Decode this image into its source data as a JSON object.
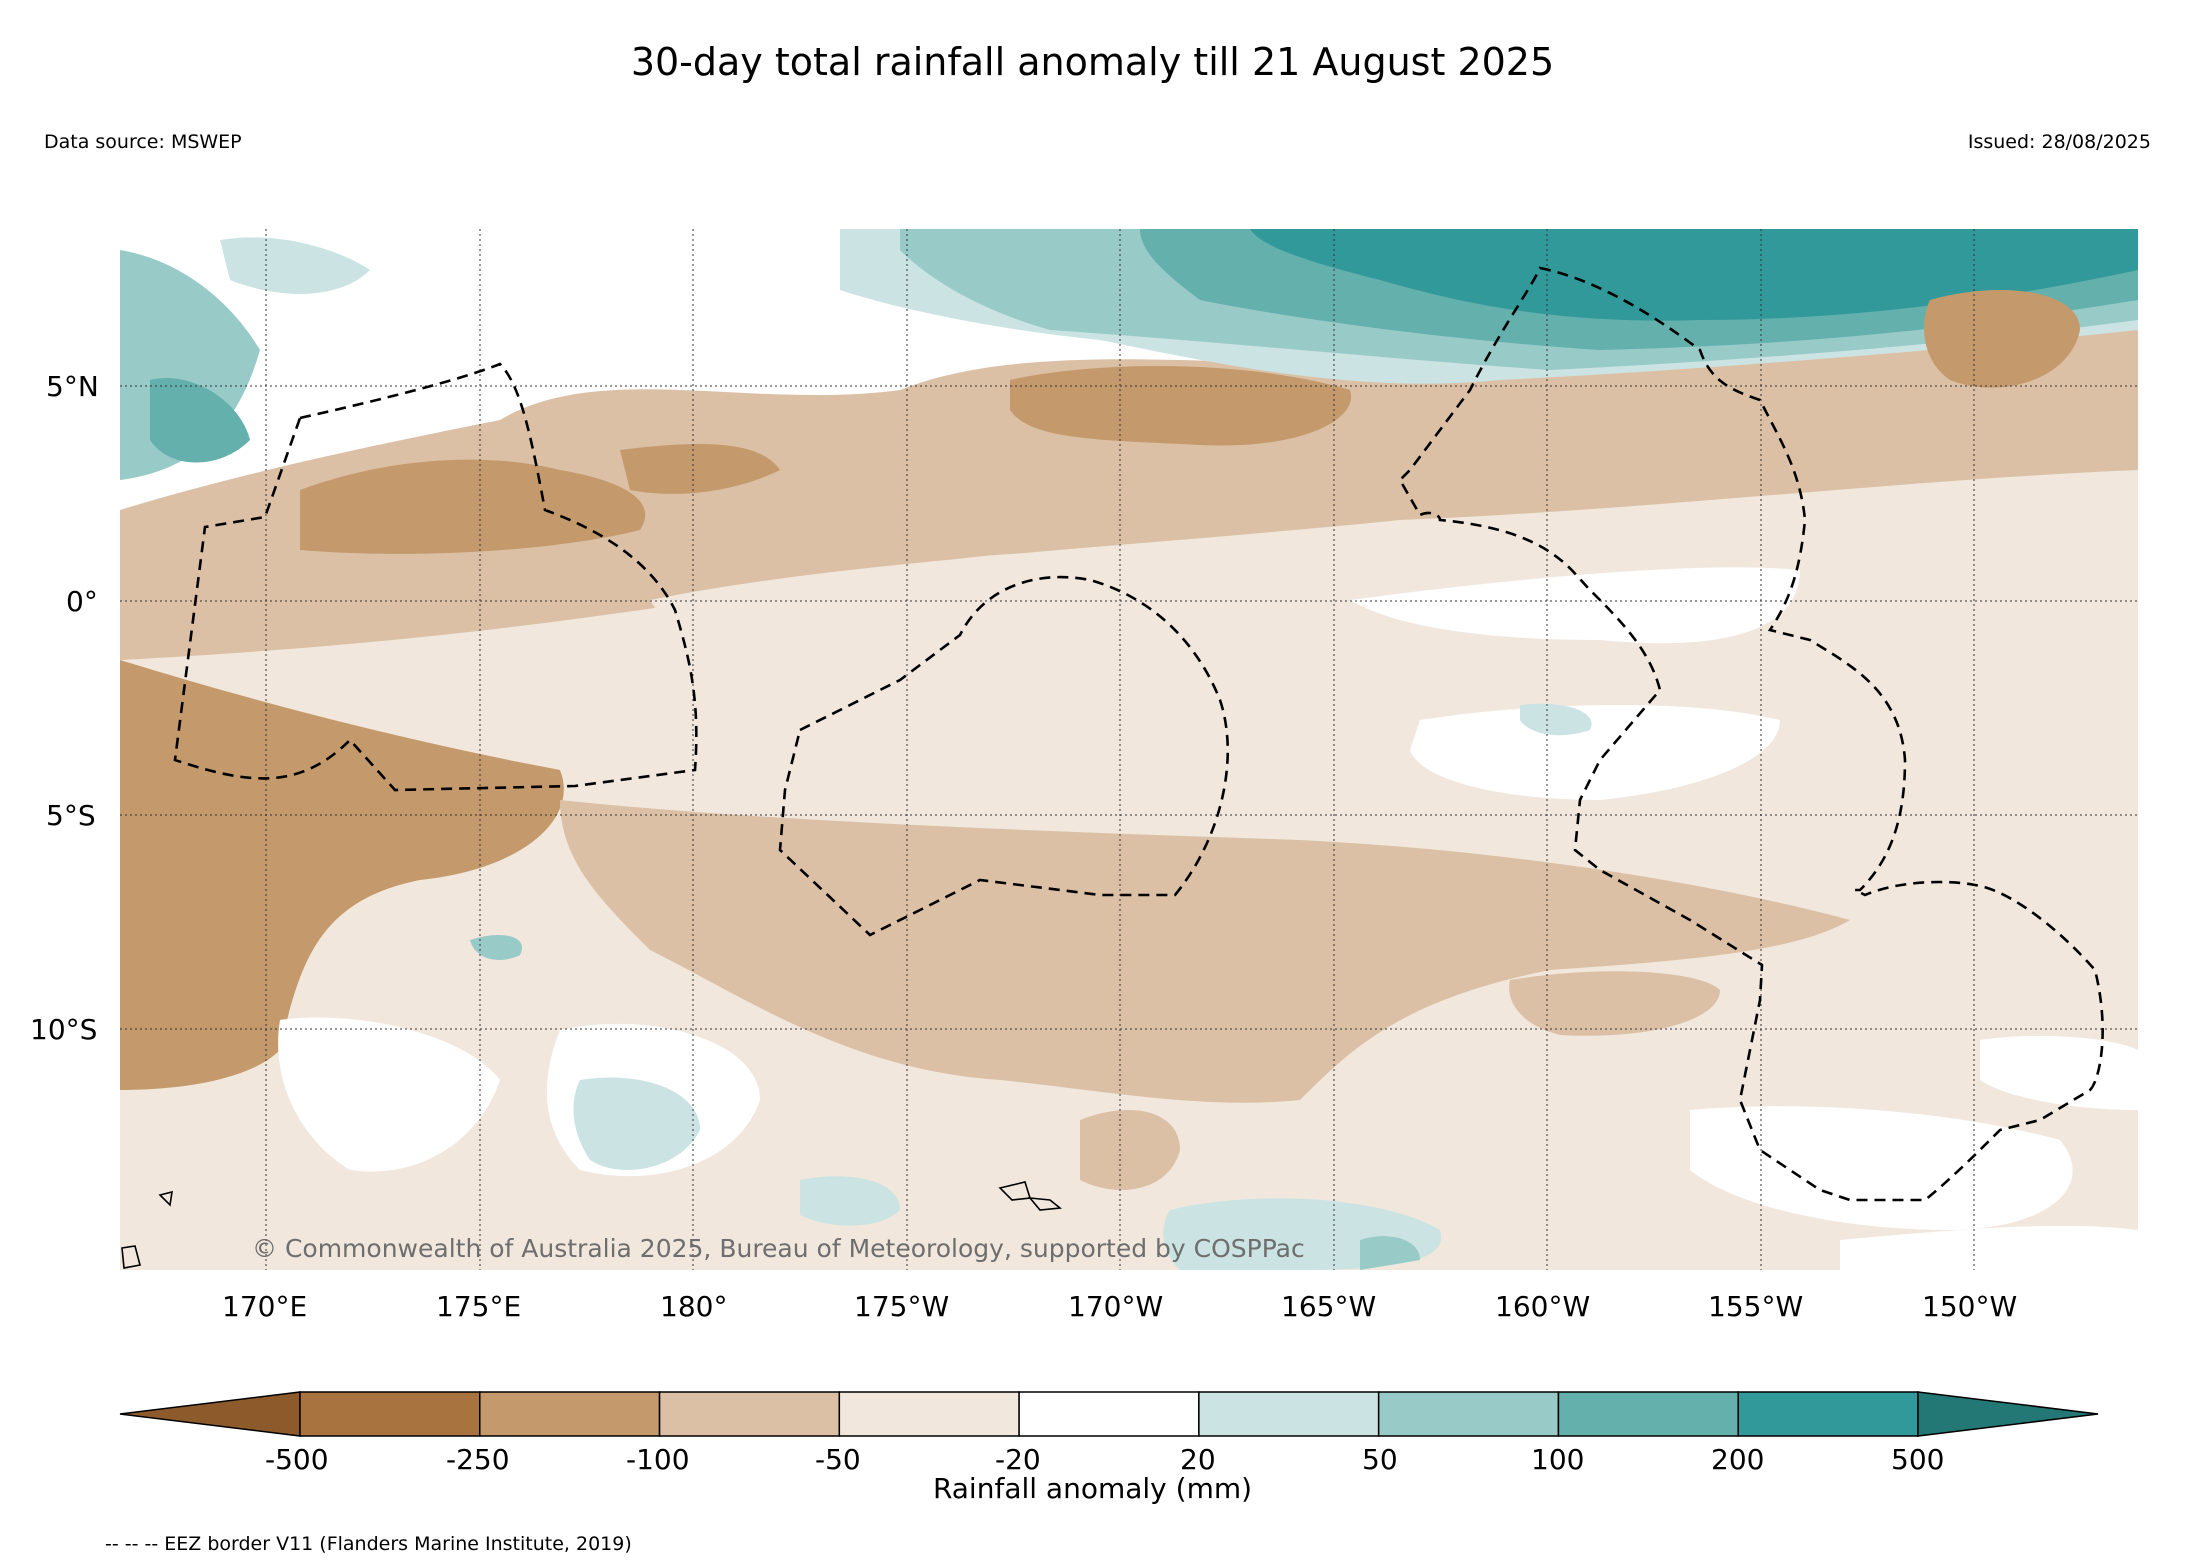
{
  "title": "30-day total rainfall anomaly till 21 August 2025",
  "data_source": "Data source: MSWEP",
  "issued": "Issued: 28/08/2025",
  "credit": "© Commonwealth of Australia 2025, Bureau of Meteorology, supported by COSPPac",
  "lat_labels": [
    "5°N",
    "0°",
    "5°S",
    "10°S"
  ],
  "lon_labels": [
    "170°E",
    "175°E",
    "180°",
    "175°W",
    "170°W",
    "165°W",
    "160°W",
    "155°W",
    "150°W"
  ],
  "colorbar": {
    "label": "Rainfall anomaly (mm)",
    "ticks": [
      "-500",
      "-250",
      "-100",
      "-50",
      "-20",
      "20",
      "50",
      "100",
      "200",
      "500"
    ],
    "colors": [
      "#8c5a2b",
      "#a8733f",
      "#c49a6c",
      "#dbc0a6",
      "#f1e7dd",
      "#ffffff",
      "#cbe4e3",
      "#98cac8",
      "#63b0ad",
      "#32999a",
      "#237875"
    ]
  },
  "legend_note": "-- -- -- EEZ border V11 (Flanders Marine Institute, 2019)"
}
